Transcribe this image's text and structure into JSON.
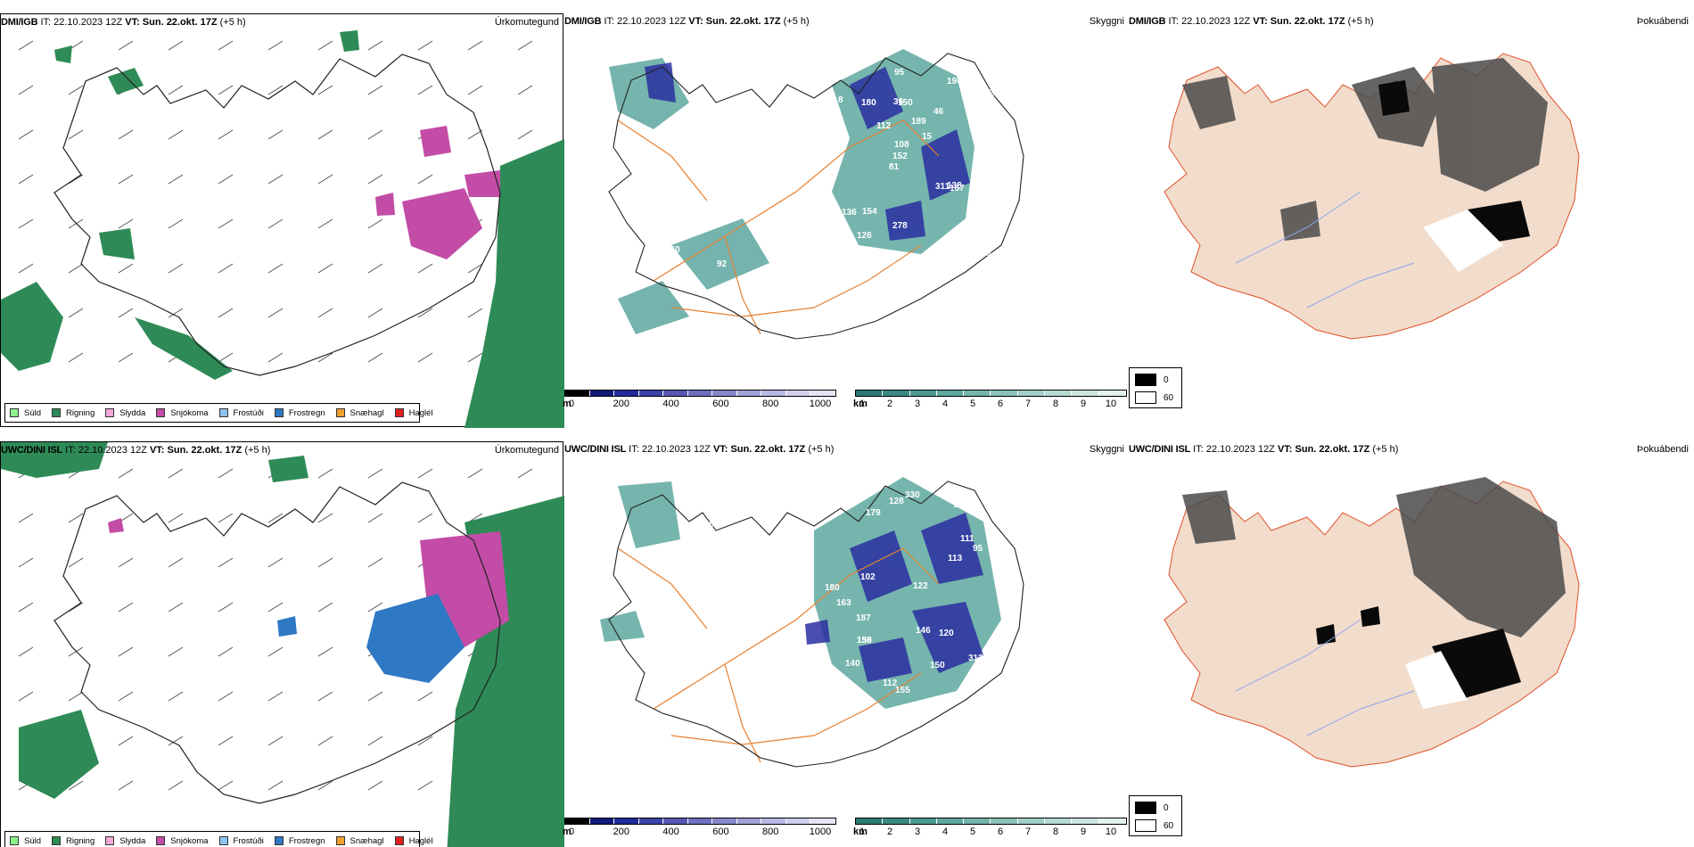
{
  "rows": [
    {
      "model": "DMI/IGB",
      "it": "IT: 22.10.2023 12Z",
      "vt": "VT: Sun. 22.okt. 17Z",
      "lead": "(+5 h)",
      "panels": [
        "Úrkomutegund",
        "Skyggni",
        "Þokuábendi"
      ],
      "labels": [
        "93",
        "70",
        "72",
        "81",
        "46",
        "141",
        "36",
        "189",
        "136",
        "112",
        "137",
        "126",
        "150",
        "15",
        "167",
        "8",
        "95",
        "209",
        "311",
        "17",
        "152",
        "278",
        "108",
        "180",
        "194",
        "154",
        "136",
        "39",
        "138",
        "92",
        "101",
        "61",
        "49",
        "150"
      ]
    },
    {
      "model": "UWC/DINI ISL",
      "it": "IT: 22.10.2023 12Z",
      "vt": "VT: Sun. 22.okt. 17Z",
      "lead": "(+5 h)",
      "panels": [
        "Úrkomutegund",
        "Skyggni",
        "Þokuábendi"
      ],
      "labels": [
        "140",
        "109",
        "179",
        "111",
        "146",
        "102",
        "187",
        "139",
        "95",
        "113",
        "163",
        "330",
        "120",
        "122",
        "155",
        "128",
        "313",
        "180",
        "158",
        "112",
        "150",
        "174",
        "106",
        "64",
        "111",
        "11"
      ]
    }
  ],
  "precip_legend": [
    {
      "label": "Súld",
      "color": "#8df28d"
    },
    {
      "label": "Rigning",
      "color": "#2e8b57"
    },
    {
      "label": "Slydda",
      "color": "#f4a6d6"
    },
    {
      "label": "Snjókoma",
      "color": "#c24ca6"
    },
    {
      "label": "Frostúði",
      "color": "#8fc2f0"
    },
    {
      "label": "Frostregn",
      "color": "#2f78c4"
    },
    {
      "label": "Snæhagl",
      "color": "#f0a030"
    },
    {
      "label": "Haglél",
      "color": "#e02020"
    }
  ],
  "elev_bar": {
    "unit": "m",
    "ticks": [
      "0",
      "200",
      "400",
      "600",
      "800",
      "1000"
    ],
    "colors": [
      "#000000",
      "#101878",
      "#202c9c",
      "#3a44a8",
      "#5858b4",
      "#6e70c0",
      "#8888cc",
      "#a0a2d8",
      "#b8b8e4",
      "#d0d0ee",
      "#e4e4f6"
    ]
  },
  "cloud_bar": {
    "unit": "km",
    "ticks": [
      "1",
      "2",
      "3",
      "4",
      "5",
      "6",
      "7",
      "8",
      "9",
      "10"
    ],
    "colors": [
      "#2a7a72",
      "#3a8a82",
      "#4c9a92",
      "#5ea8a0",
      "#74b4ac",
      "#8ac2ba",
      "#a0cec8",
      "#b6dad4",
      "#cce6e2",
      "#e2f2ef"
    ]
  },
  "fog_legend": [
    "0",
    "60"
  ]
}
